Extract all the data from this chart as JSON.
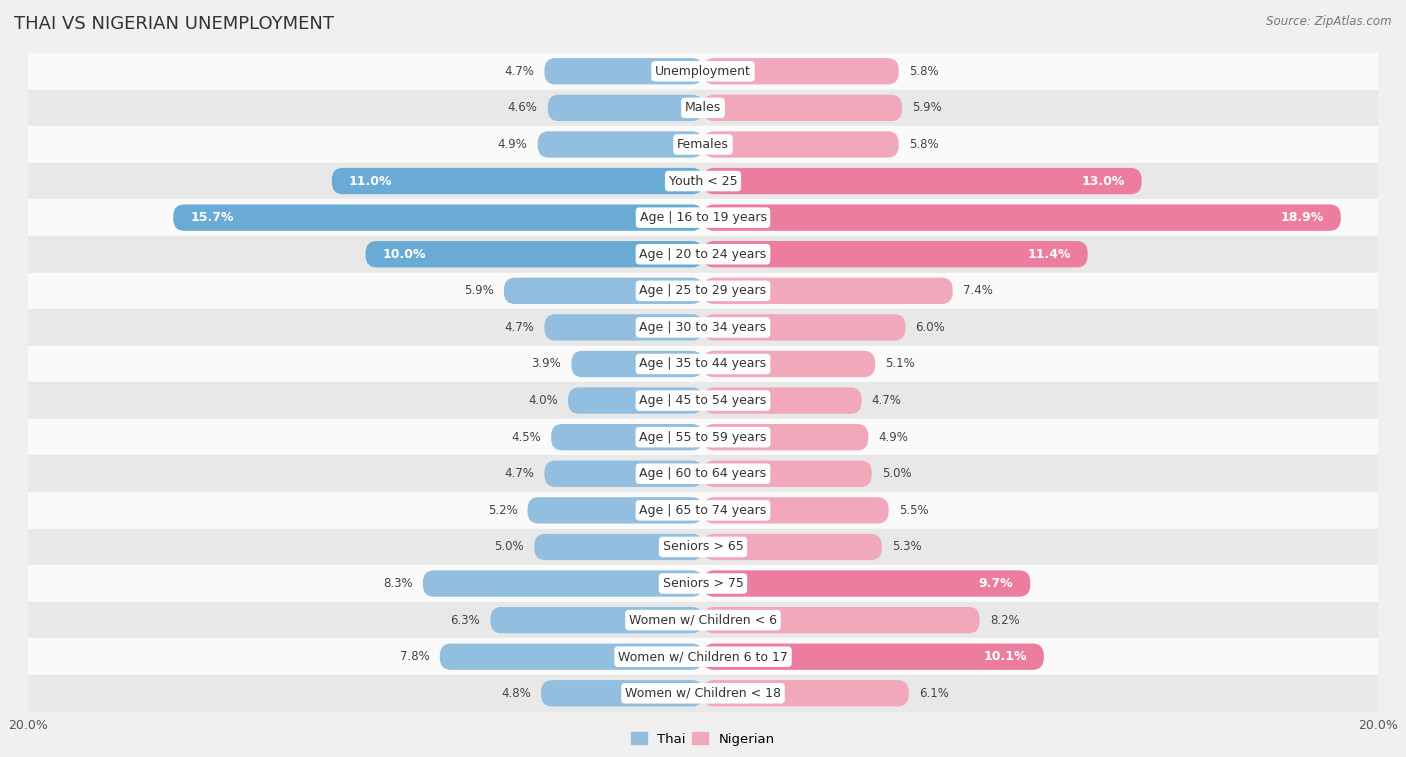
{
  "title": "THAI VS NIGERIAN UNEMPLOYMENT",
  "source": "Source: ZipAtlas.com",
  "categories": [
    "Unemployment",
    "Males",
    "Females",
    "Youth < 25",
    "Age | 16 to 19 years",
    "Age | 20 to 24 years",
    "Age | 25 to 29 years",
    "Age | 30 to 34 years",
    "Age | 35 to 44 years",
    "Age | 45 to 54 years",
    "Age | 55 to 59 years",
    "Age | 60 to 64 years",
    "Age | 65 to 74 years",
    "Seniors > 65",
    "Seniors > 75",
    "Women w/ Children < 6",
    "Women w/ Children 6 to 17",
    "Women w/ Children < 18"
  ],
  "thai_values": [
    4.7,
    4.6,
    4.9,
    11.0,
    15.7,
    10.0,
    5.9,
    4.7,
    3.9,
    4.0,
    4.5,
    4.7,
    5.2,
    5.0,
    8.3,
    6.3,
    7.8,
    4.8
  ],
  "nigerian_values": [
    5.8,
    5.9,
    5.8,
    13.0,
    18.9,
    11.4,
    7.4,
    6.0,
    5.1,
    4.7,
    4.9,
    5.0,
    5.5,
    5.3,
    9.7,
    8.2,
    10.1,
    6.1
  ],
  "thai_color_normal": "#92bfdf",
  "nigerian_color_normal": "#f2a8bb",
  "thai_color_highlight": "#6aabd6",
  "nigerian_color_highlight": "#ec7d9e",
  "axis_max": 20.0,
  "bar_height": 0.72,
  "bg_color": "#f0f0f0",
  "row_color_light": "#fafafa",
  "row_color_dark": "#e8e8e8",
  "label_fontsize": 9.0,
  "title_fontsize": 13,
  "value_fontsize": 8.5,
  "value_fontsize_inside": 9.0
}
